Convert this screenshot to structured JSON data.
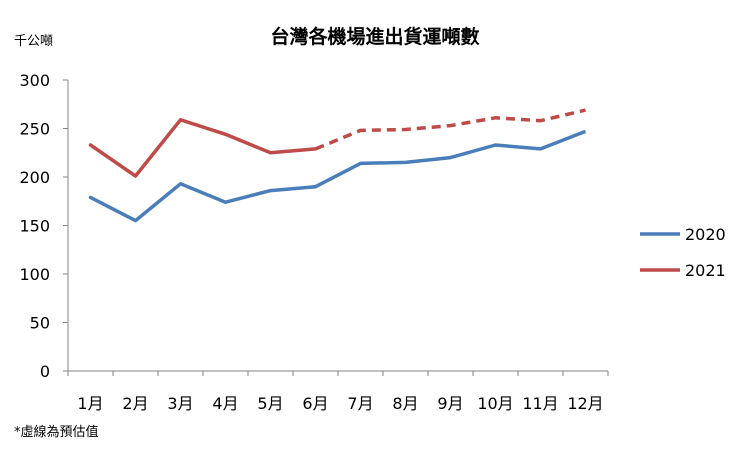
{
  "chart_data": {
    "type": "line",
    "title": "台灣各機場進出貨運噸數",
    "unit_label": "千公噸",
    "note": "*虛線為預估值",
    "categories": [
      "1月",
      "2月",
      "3月",
      "4月",
      "5月",
      "6月",
      "7月",
      "8月",
      "9月",
      "10月",
      "11月",
      "12月"
    ],
    "ylim": [
      0,
      300
    ],
    "yticks": [
      0,
      50,
      100,
      150,
      200,
      250,
      300
    ],
    "grid": false,
    "legend_position": "right",
    "estimated_from_index": 5,
    "series": [
      {
        "name": "2020",
        "color": "#4A7EBB",
        "values": [
          179,
          155,
          193,
          174,
          186,
          190,
          214,
          215,
          220,
          233,
          229,
          247
        ]
      },
      {
        "name": "2021",
        "color": "#BE4B48",
        "values": [
          233,
          201,
          259,
          244,
          225,
          229,
          248,
          249,
          253,
          261,
          258,
          269
        ]
      }
    ]
  }
}
